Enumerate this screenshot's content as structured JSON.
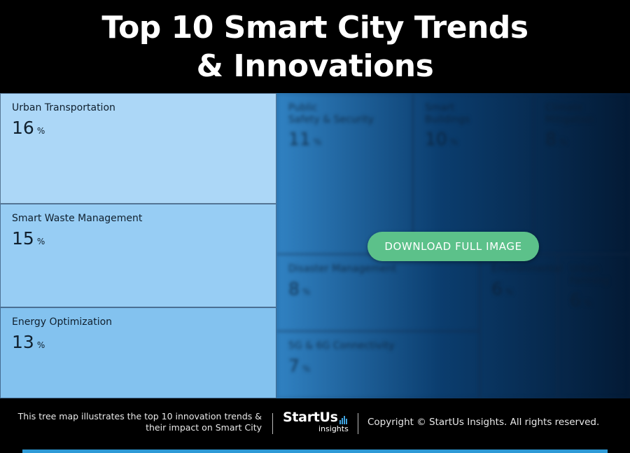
{
  "header": {
    "title_line1": "Top 10 Smart City Trends",
    "title_line2": "& Innovations"
  },
  "chart_data": {
    "type": "treemap",
    "title": "Top 10 Smart City Trends & Innovations",
    "unit": "%",
    "items": [
      {
        "name": "Urban Transportation",
        "value": 16
      },
      {
        "name": "Smart Waste Management",
        "value": 15
      },
      {
        "name": "Energy Optimization",
        "value": 13
      },
      {
        "name": "Public\nSafety & Security",
        "value": 11
      },
      {
        "name": "Smart\nBuildings",
        "value": 10
      },
      {
        "name": "Climate\nMitigation",
        "value": 8
      },
      {
        "name": "Disaster Management",
        "value": 8
      },
      {
        "name": "5G & 6G Connectivity",
        "value": 7
      },
      {
        "name": "Environmental",
        "value": 6
      },
      {
        "name": "Urban\nFarming",
        "value": 6
      }
    ]
  },
  "download_label": "DOWNLOAD FULL IMAGE",
  "footer": {
    "description_line1": "This tree map illustrates the top 10 innovation trends &",
    "description_line2": "their impact on Smart City",
    "logo_main": "StartUs",
    "logo_sub": "insights",
    "copyright": "Copyright © StartUs Insights. All rights reserved."
  },
  "colors": {
    "accent_green": "#5cc18a",
    "brand_blue": "#2e9ad6",
    "tile_light": "#a9d5f5",
    "tile_dark": "#031a35"
  }
}
